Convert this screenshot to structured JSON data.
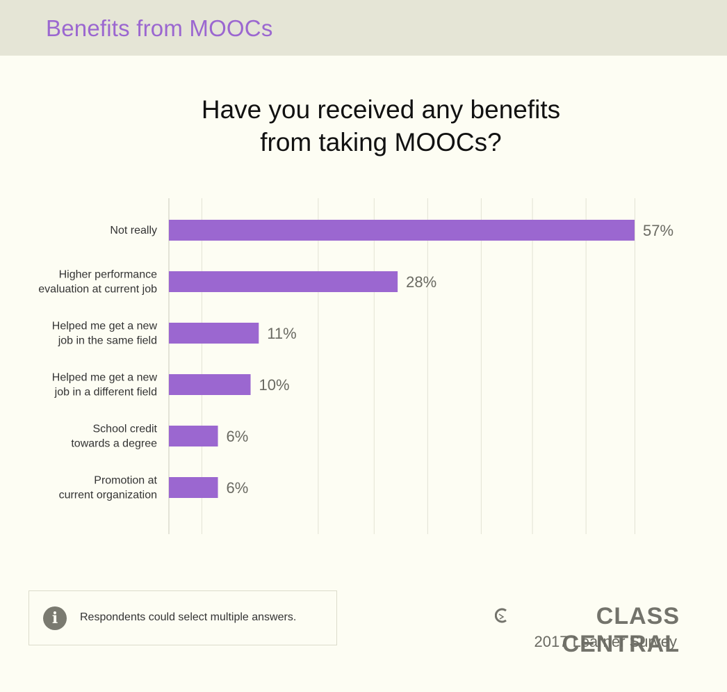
{
  "header": {
    "title": "Benefits from MOOCs"
  },
  "chart_title_lines": [
    "Have you received any benefits",
    "from taking MOOCs?"
  ],
  "colors": {
    "bar": "#9b67d0",
    "header_text": "#9b67d0",
    "grid": "#e2e2d4",
    "value_text": "#6a6a62"
  },
  "chart_data": {
    "type": "bar",
    "orientation": "horizontal",
    "title": "Have you received any benefits from taking MOOCs?",
    "categories": [
      [
        "Not really"
      ],
      [
        "Higher performance",
        "evaluation at current job"
      ],
      [
        "Helped me get a new",
        "job in the same field"
      ],
      [
        "Helped me get a new",
        "job in a different field"
      ],
      [
        "School credit",
        "towards a degree"
      ],
      [
        "Promotion at",
        "current organization"
      ]
    ],
    "values": [
      57,
      28,
      11,
      10,
      6,
      6
    ],
    "value_labels": [
      "57%",
      "28%",
      "11%",
      "10%",
      "6%",
      "6%"
    ],
    "unit": "%",
    "xlim": [
      0,
      57
    ],
    "grid": true,
    "xlabel": "",
    "ylabel": ""
  },
  "note": {
    "icon": "info-icon",
    "text": "Respondents could select multiple answers."
  },
  "brand": {
    "name": "CLASS CENTRAL",
    "subtitle": "2017 Learner Survey"
  }
}
